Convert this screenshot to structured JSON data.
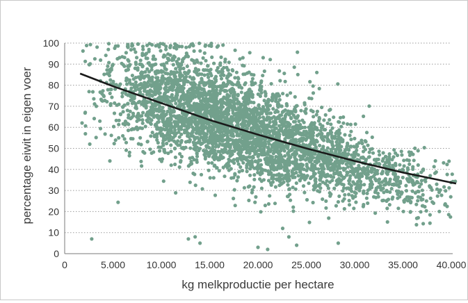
{
  "chart_data": {
    "type": "scatter",
    "title": "",
    "xlabel": "kg melkproductie per hectare",
    "ylabel": "percentage eiwit in eigen voer",
    "xlim": [
      0,
      40000
    ],
    "ylim": [
      0,
      100
    ],
    "x_ticks": [
      0,
      5000,
      10000,
      15000,
      20000,
      25000,
      30000,
      35000,
      40000
    ],
    "x_tick_labels": [
      "0",
      "5.000",
      "10.000",
      "15.000",
      "20.000",
      "25.000",
      "30.000",
      "35.000",
      "40.000"
    ],
    "y_ticks": [
      0,
      10,
      20,
      30,
      40,
      50,
      60,
      70,
      80,
      90,
      100
    ],
    "y_tick_labels": [
      "0",
      "10",
      "20",
      "30",
      "40",
      "50",
      "60",
      "70",
      "80",
      "90",
      "100"
    ],
    "grid": {
      "horizontal": true,
      "style": "dotted"
    },
    "legend": "none",
    "colors": {
      "points": "#72a08c",
      "trend": "#1a1a1a",
      "grid": "#9a9a9a",
      "axis": "#7a7a7a"
    },
    "series": [
      {
        "kind": "scatter",
        "approx_point_count": 4000,
        "clusters": [
          {
            "x_center": 14000,
            "x_spread": 5200,
            "y_center": 68,
            "y_spread": 13,
            "weight": 0.55
          },
          {
            "x_center": 22000,
            "x_spread": 5000,
            "y_center": 52,
            "y_spread": 11,
            "weight": 0.3
          },
          {
            "x_center": 31000,
            "x_spread": 5000,
            "y_center": 39,
            "y_spread": 8,
            "weight": 0.15
          }
        ],
        "x_range": [
          1500,
          40500
        ],
        "y_range": [
          2,
          100
        ]
      },
      {
        "kind": "trend",
        "points": [
          {
            "x": 1600,
            "y": 85.5
          },
          {
            "x": 5000,
            "y": 79.5
          },
          {
            "x": 10000,
            "y": 71.5
          },
          {
            "x": 15000,
            "y": 63.5
          },
          {
            "x": 20000,
            "y": 56.5
          },
          {
            "x": 25000,
            "y": 50
          },
          {
            "x": 30000,
            "y": 44
          },
          {
            "x": 35000,
            "y": 38.5
          },
          {
            "x": 40500,
            "y": 33.3
          }
        ]
      }
    ]
  }
}
